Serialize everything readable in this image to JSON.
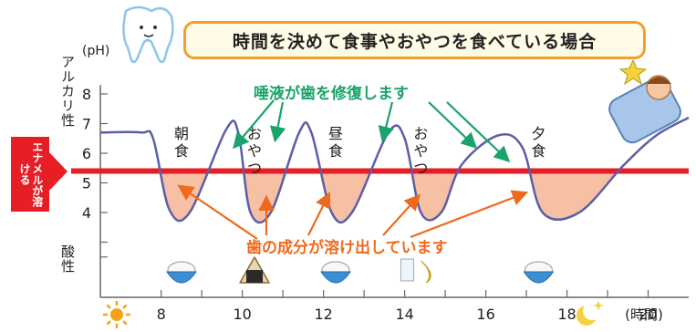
{
  "title": "時間を決めて食事やおやつを食べている場合",
  "chart_data": {
    "type": "line",
    "ylabel_top": "アルカリ性",
    "ylabel_bottom": "酸性",
    "yunit": "(pH)",
    "yticks": [
      "8",
      "7",
      "6",
      "5",
      "4"
    ],
    "xticks": [
      "8",
      "10",
      "12",
      "14",
      "16",
      "18",
      "20"
    ],
    "xunit": "(時間)",
    "threshold": {
      "ph": 5.4,
      "label": "エナメルが溶ける",
      "color": "#e61e25"
    },
    "series": [
      {
        "x": [
          6.5,
          7.5,
          7.8,
          8.2,
          8.7,
          9.6,
          9.9,
          10.2,
          10.7,
          11.4,
          11.7,
          12.2,
          12.7,
          13.6,
          14.0,
          14.4,
          14.9,
          15.4,
          16.3,
          16.9,
          17.4,
          18.3,
          19.4,
          20.2,
          21.0
        ],
        "y": [
          6.7,
          6.7,
          6.5,
          4.1,
          4.0,
          6.8,
          6.7,
          4.0,
          4.0,
          6.7,
          6.7,
          4.0,
          4.0,
          6.7,
          6.5,
          4.0,
          4.0,
          5.6,
          6.6,
          6.2,
          4.0,
          4.0,
          5.6,
          6.6,
          7.2
        ],
        "color": "#5c5ea8"
      }
    ],
    "meals": [
      {
        "x": 8.5,
        "label": "朝食",
        "icon": "rice-bowl-icon"
      },
      {
        "x": 10.3,
        "label": "おやつ",
        "icon": "onigiri-icon"
      },
      {
        "x": 12.3,
        "label": "昼食",
        "icon": "rice-bowl-icon"
      },
      {
        "x": 14.4,
        "label": "おやつ",
        "icon": "milk-banana-icon"
      },
      {
        "x": 17.3,
        "label": "夕食",
        "icon": "rice-bowl-icon"
      }
    ],
    "annotation_saliva": "唾液が歯を修復します",
    "annotation_saliva_color": "#1aa36a",
    "annotation_dissolve": "歯の成分が溶け出しています",
    "annotation_dissolve_color": "#ee6a1c",
    "fill_color": "#f4b99a",
    "xlim": [
      6.5,
      21
    ],
    "ylim": [
      2,
      9
    ]
  }
}
